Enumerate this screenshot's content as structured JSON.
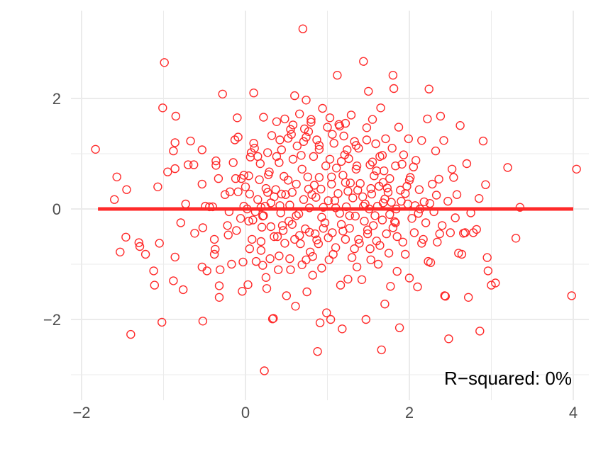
{
  "chart_data": {
    "type": "scatter",
    "title": "",
    "xlabel": "",
    "ylabel": "",
    "xlim": [
      -1.95,
      4.15
    ],
    "ylim": [
      -3.15,
      3.4
    ],
    "x_ticks": [
      -2,
      0,
      2,
      4
    ],
    "x_tick_labels": [
      "−2",
      "0",
      "2",
      "4"
    ],
    "y_ticks": [
      -2,
      0,
      2
    ],
    "y_tick_labels": [
      "−2",
      "0",
      "2"
    ],
    "grid": true,
    "legend": "none",
    "colors": {
      "points": "#ff2a2a",
      "fit_line": "#ff2a2a",
      "grid": "#ebebeb",
      "background": "#ffffff"
    },
    "fit_line": {
      "x": [
        -1.8,
        4.0
      ],
      "y": [
        0.0,
        0.0
      ]
    },
    "annotation": "R−squared: 0%",
    "points": [
      [
        -1.83,
        1.08
      ],
      [
        -1.57,
        0.58
      ],
      [
        -1.6,
        0.17
      ],
      [
        -1.45,
        0.35
      ],
      [
        -1.53,
        -0.78
      ],
      [
        -1.46,
        -0.51
      ],
      [
        -1.4,
        -2.27
      ],
      [
        -1.3,
        -0.61
      ],
      [
        -1.29,
        -0.68
      ],
      [
        -1.22,
        -0.82
      ],
      [
        -1.12,
        -1.12
      ],
      [
        -1.11,
        -1.38
      ],
      [
        -1.07,
        0.4
      ],
      [
        -1.05,
        -0.62
      ],
      [
        -1.02,
        -2.05
      ],
      [
        -0.99,
        2.65
      ],
      [
        -1.01,
        1.83
      ],
      [
        -0.95,
        0.67
      ],
      [
        -0.88,
        1.05
      ],
      [
        -0.86,
        1.2
      ],
      [
        -0.85,
        1.68
      ],
      [
        -0.86,
        0.73
      ],
      [
        -0.88,
        -1.3
      ],
      [
        -0.86,
        -0.87
      ],
      [
        -0.79,
        -0.25
      ],
      [
        -0.76,
        -1.46
      ],
      [
        -0.73,
        0.09
      ],
      [
        -0.7,
        0.8
      ],
      [
        -0.67,
        1.23
      ],
      [
        -0.63,
        0.8
      ],
      [
        -0.62,
        -0.44
      ],
      [
        -0.53,
        1.07
      ],
      [
        -0.53,
        0.45
      ],
      [
        -0.52,
        -0.34
      ],
      [
        -0.53,
        -1.05
      ],
      [
        -0.52,
        -2.03
      ],
      [
        -0.49,
        0.05
      ],
      [
        -0.47,
        -1.12
      ],
      [
        -0.44,
        0.04
      ],
      [
        -0.4,
        0.04
      ],
      [
        -0.38,
        -0.55
      ],
      [
        -0.37,
        -0.73
      ],
      [
        -0.38,
        -0.82
      ],
      [
        -0.36,
        0.79
      ],
      [
        -0.36,
        0.87
      ],
      [
        -0.33,
        0.55
      ],
      [
        -0.32,
        -1.39
      ],
      [
        -0.32,
        -1.6
      ],
      [
        -0.31,
        -1.1
      ],
      [
        -0.28,
        2.08
      ],
      [
        -0.25,
        0.26
      ],
      [
        -0.22,
        -0.3
      ],
      [
        -0.21,
        -0.47
      ],
      [
        -0.19,
        0.31
      ],
      [
        -0.17,
        -1.0
      ],
      [
        -0.15,
        0.84
      ],
      [
        -0.13,
        1.25
      ],
      [
        -0.1,
        1.65
      ],
      [
        -0.09,
        1.3
      ],
      [
        -0.11,
        -0.39
      ],
      [
        -0.09,
        0.31
      ],
      [
        -0.06,
        -0.17
      ],
      [
        -0.04,
        -1.49
      ],
      [
        -0.03,
        -0.96
      ],
      [
        -0.02,
        0.61
      ],
      [
        0.0,
        0.4
      ],
      [
        -0.02,
        0.05
      ],
      [
        0.02,
        0.0
      ],
      [
        0.03,
        -1.37
      ],
      [
        0.04,
        -0.22
      ],
      [
        0.04,
        0.6
      ],
      [
        0.05,
        -0.72
      ],
      [
        0.06,
        0.94
      ],
      [
        0.07,
        1.02
      ],
      [
        0.08,
        -0.55
      ],
      [
        0.1,
        2.1
      ],
      [
        0.1,
        1.19
      ],
      [
        0.11,
        1.1
      ],
      [
        0.13,
        -0.95
      ],
      [
        0.15,
        0.17
      ],
      [
        0.17,
        0.53
      ],
      [
        0.18,
        0.82
      ],
      [
        0.19,
        0.03
      ],
      [
        0.19,
        -0.59
      ],
      [
        0.2,
        -0.33
      ],
      [
        0.21,
        -0.13
      ],
      [
        0.21,
        -1.02
      ],
      [
        0.22,
        1.66
      ],
      [
        0.23,
        -2.93
      ],
      [
        0.24,
        0.05
      ],
      [
        0.25,
        -1.24
      ],
      [
        0.26,
        -1.44
      ],
      [
        0.27,
        0.3
      ],
      [
        0.29,
        0.67
      ],
      [
        0.3,
        -0.9
      ],
      [
        0.31,
        0.11
      ],
      [
        0.32,
        1.33
      ],
      [
        0.33,
        -1.99
      ],
      [
        0.34,
        -1.98
      ],
      [
        0.35,
        0.22
      ],
      [
        0.37,
        0.35
      ],
      [
        0.38,
        1.58
      ],
      [
        0.39,
        -0.5
      ],
      [
        0.4,
        -1.1
      ],
      [
        0.41,
        0.84
      ],
      [
        0.42,
        0.06
      ],
      [
        0.43,
        -0.07
      ],
      [
        0.44,
        1.07
      ],
      [
        0.46,
        -0.39
      ],
      [
        0.47,
        0.59
      ],
      [
        0.48,
        1.63
      ],
      [
        0.49,
        0.26
      ],
      [
        0.5,
        -1.57
      ],
      [
        0.52,
        0.52
      ],
      [
        0.53,
        -0.22
      ],
      [
        0.54,
        0.07
      ],
      [
        0.55,
        -1.1
      ],
      [
        0.56,
        1.35
      ],
      [
        0.57,
        -0.28
      ],
      [
        0.58,
        0.9
      ],
      [
        0.6,
        2.05
      ],
      [
        0.61,
        -1.76
      ],
      [
        0.62,
        0.45
      ],
      [
        0.63,
        1.14
      ],
      [
        0.65,
        -0.09
      ],
      [
        0.66,
        1.72
      ],
      [
        0.67,
        -0.63
      ],
      [
        0.68,
        0.97
      ],
      [
        0.69,
        -1.01
      ],
      [
        0.7,
        3.26
      ],
      [
        0.71,
        0.17
      ],
      [
        0.72,
        1.45
      ],
      [
        0.73,
        -0.36
      ],
      [
        0.74,
        1.97
      ],
      [
        0.75,
        -1.5
      ],
      [
        0.76,
        0.58
      ],
      [
        0.77,
        1.4
      ],
      [
        0.78,
        0.02
      ],
      [
        0.79,
        -0.78
      ],
      [
        0.8,
        1.57
      ],
      [
        0.81,
        0.26
      ],
      [
        0.82,
        -1.2
      ],
      [
        0.83,
        0.95
      ],
      [
        0.85,
        -0.45
      ],
      [
        0.86,
        0.21
      ],
      [
        0.87,
        1.25
      ],
      [
        0.88,
        -2.58
      ],
      [
        0.89,
        -0.63
      ],
      [
        0.9,
        1.08
      ],
      [
        0.91,
        -2.06
      ],
      [
        0.92,
        0.36
      ],
      [
        0.93,
        -1.07
      ],
      [
        0.94,
        1.82
      ],
      [
        0.95,
        0.03
      ],
      [
        0.97,
        -0.25
      ],
      [
        0.98,
        0.78
      ],
      [
        0.99,
        -1.88
      ],
      [
        1.0,
        1.48
      ],
      [
        1.01,
        0.15
      ],
      [
        1.02,
        -0.92
      ],
      [
        1.03,
        1.65
      ],
      [
        1.04,
        -2.0
      ],
      [
        1.05,
        0.45
      ],
      [
        1.06,
        -0.43
      ],
      [
        1.08,
        1.19
      ],
      [
        1.09,
        0.15
      ],
      [
        1.1,
        -0.7
      ],
      [
        1.12,
        2.42
      ],
      [
        1.13,
        0.28
      ],
      [
        1.14,
        1.53
      ],
      [
        1.15,
        -0.08
      ],
      [
        1.16,
        -1.38
      ],
      [
        1.17,
        0.86
      ],
      [
        1.18,
        -2.17
      ],
      [
        1.19,
        0.61
      ],
      [
        1.2,
        1.32
      ],
      [
        1.22,
        -0.55
      ],
      [
        1.23,
        0.04
      ],
      [
        1.24,
        1.07
      ],
      [
        1.25,
        -1.27
      ],
      [
        1.26,
        0.91
      ],
      [
        1.27,
        -0.35
      ],
      [
        1.28,
        0.47
      ],
      [
        1.29,
        1.7
      ],
      [
        1.3,
        -0.88
      ],
      [
        1.31,
        0.2
      ],
      [
        1.33,
        1.22
      ],
      [
        1.34,
        -0.13
      ],
      [
        1.35,
        0.72
      ],
      [
        1.36,
        -1.05
      ],
      [
        1.37,
        0.34
      ],
      [
        1.38,
        1.1
      ],
      [
        1.39,
        -0.62
      ],
      [
        1.4,
        0.46
      ],
      [
        1.42,
        -1.28
      ],
      [
        1.44,
        2.67
      ],
      [
        1.45,
        -0.22
      ],
      [
        1.46,
        0.09
      ],
      [
        1.47,
        -2.0
      ],
      [
        1.48,
        1.47
      ],
      [
        1.49,
        -0.45
      ],
      [
        1.5,
        2.13
      ],
      [
        1.51,
        0.0
      ],
      [
        1.52,
        0.8
      ],
      [
        1.53,
        -0.92
      ],
      [
        1.54,
        0.27
      ],
      [
        1.55,
        1.62
      ],
      [
        1.56,
        -0.3
      ],
      [
        1.57,
        0.6
      ],
      [
        1.59,
        1.18
      ],
      [
        1.6,
        -0.58
      ],
      [
        1.61,
        0.05
      ],
      [
        1.62,
        -1.0
      ],
      [
        1.63,
        0.41
      ],
      [
        1.64,
        0.95
      ],
      [
        1.65,
        1.83
      ],
      [
        1.66,
        -2.55
      ],
      [
        1.67,
        -0.2
      ],
      [
        1.68,
        0.11
      ],
      [
        1.69,
        0.69
      ],
      [
        1.7,
        -1.72
      ],
      [
        1.71,
        1.27
      ],
      [
        1.72,
        -0.45
      ],
      [
        1.74,
        0.3
      ],
      [
        1.75,
        -0.8
      ],
      [
        1.76,
        0.55
      ],
      [
        1.77,
        -1.4
      ],
      [
        1.78,
        0.12
      ],
      [
        1.79,
        1.1
      ],
      [
        1.8,
        2.42
      ],
      [
        1.81,
        2.18
      ],
      [
        1.82,
        -0.23
      ],
      [
        1.83,
        0.78
      ],
      [
        1.84,
        0.0
      ],
      [
        1.85,
        -1.13
      ],
      [
        1.87,
        1.48
      ],
      [
        1.88,
        -2.15
      ],
      [
        1.89,
        0.34
      ],
      [
        1.9,
        0.14
      ],
      [
        1.92,
        -0.6
      ],
      [
        1.93,
        0.98
      ],
      [
        1.95,
        -0.82
      ],
      [
        1.97,
        0.41
      ],
      [
        1.98,
        0.09
      ],
      [
        2.0,
        -1.25
      ],
      [
        2.01,
        0.57
      ],
      [
        2.03,
        -0.17
      ],
      [
        2.05,
        0.76
      ],
      [
        2.06,
        -0.43
      ],
      [
        2.08,
        0.88
      ],
      [
        2.1,
        -1.41
      ],
      [
        2.12,
        0.35
      ],
      [
        2.13,
        0.0
      ],
      [
        2.15,
        1.24
      ],
      [
        2.17,
        -0.55
      ],
      [
        2.18,
        0.13
      ],
      [
        2.2,
        -0.25
      ],
      [
        2.22,
        1.63
      ],
      [
        2.24,
        2.17
      ],
      [
        2.26,
        -0.97
      ],
      [
        2.28,
        0.45
      ],
      [
        2.3,
        -0.05
      ],
      [
        2.32,
        1.05
      ],
      [
        2.34,
        -0.6
      ],
      [
        2.36,
        0.54
      ],
      [
        2.38,
        1.68
      ],
      [
        2.4,
        -0.3
      ],
      [
        2.42,
        1.24
      ],
      [
        2.43,
        -1.57
      ],
      [
        2.44,
        -1.58
      ],
      [
        2.47,
        0.14
      ],
      [
        2.48,
        -2.35
      ],
      [
        2.5,
        -0.43
      ],
      [
        2.52,
        0.72
      ],
      [
        2.54,
        0.57
      ],
      [
        2.56,
        -0.16
      ],
      [
        2.58,
        0.26
      ],
      [
        2.6,
        -0.8
      ],
      [
        2.62,
        1.51
      ],
      [
        2.64,
        -0.82
      ],
      [
        2.66,
        -0.44
      ],
      [
        2.68,
        -0.43
      ],
      [
        2.7,
        0.82
      ],
      [
        2.72,
        -1.6
      ],
      [
        2.75,
        -0.07
      ],
      [
        2.78,
        -0.43
      ],
      [
        2.82,
        -0.37
      ],
      [
        2.85,
        0.19
      ],
      [
        2.86,
        -2.21
      ],
      [
        2.9,
        1.23
      ],
      [
        2.93,
        0.44
      ],
      [
        2.95,
        -0.88
      ],
      [
        2.96,
        -1.12
      ],
      [
        3.0,
        -1.38
      ],
      [
        3.05,
        -1.34
      ],
      [
        3.2,
        0.75
      ],
      [
        3.3,
        -0.53
      ],
      [
        3.35,
        0.03
      ],
      [
        3.98,
        -1.57
      ],
      [
        4.04,
        0.72
      ],
      [
        0.35,
        -0.5
      ],
      [
        0.45,
        -0.3
      ],
      [
        0.62,
        -0.12
      ],
      [
        0.78,
        -0.42
      ],
      [
        0.95,
        -0.35
      ],
      [
        1.1,
        0.02
      ],
      [
        1.25,
        0.32
      ],
      [
        1.43,
        0.22
      ],
      [
        1.58,
        -0.12
      ],
      [
        1.73,
        0.38
      ],
      [
        0.15,
        0.95
      ],
      [
        0.27,
        1.02
      ],
      [
        0.52,
        1.28
      ],
      [
        0.69,
        0.72
      ],
      [
        0.84,
        0.43
      ],
      [
        1.05,
        0.58
      ],
      [
        1.21,
        0.98
      ],
      [
        1.36,
        0.78
      ],
      [
        1.53,
        0.37
      ],
      [
        1.68,
        0.48
      ],
      [
        0.19,
        -0.75
      ],
      [
        0.31,
        -0.32
      ],
      [
        0.48,
        -0.62
      ],
      [
        0.66,
        -0.48
      ],
      [
        0.82,
        -0.86
      ],
      [
        1.01,
        -0.52
      ],
      [
        1.17,
        -0.28
      ],
      [
        1.33,
        -0.72
      ],
      [
        1.49,
        -0.38
      ],
      [
        1.64,
        -0.66
      ],
      [
        1.8,
        -0.34
      ],
      [
        1.95,
        0.28
      ],
      [
        2.11,
        -0.08
      ],
      [
        2.25,
        0.1
      ],
      [
        2.37,
        -0.45
      ],
      [
        0.09,
        -0.2
      ],
      [
        0.25,
        0.37
      ],
      [
        0.41,
        -0.85
      ],
      [
        0.57,
        0.3
      ],
      [
        0.74,
        -0.92
      ],
      [
        0.9,
        0.57
      ],
      [
        1.07,
        -0.82
      ],
      [
        1.22,
        0.48
      ],
      [
        1.38,
        -0.55
      ],
      [
        1.55,
        0.85
      ],
      [
        1.7,
        0.18
      ],
      [
        1.85,
        -0.5
      ],
      [
        2.0,
        0.52
      ],
      [
        2.15,
        -0.62
      ],
      [
        2.33,
        0.25
      ],
      [
        -0.05,
        0.55
      ],
      [
        0.12,
        -0.05
      ],
      [
        0.28,
        0.62
      ],
      [
        0.44,
        0.27
      ],
      [
        0.6,
        -0.55
      ],
      [
        0.77,
        0.36
      ],
      [
        0.93,
        -0.15
      ],
      [
        1.11,
        0.74
      ],
      [
        1.27,
        -0.12
      ],
      [
        1.44,
        0.05
      ],
      [
        1.6,
        0.69
      ],
      [
        1.76,
        -0.1
      ],
      [
        1.91,
        0.81
      ],
      [
        2.07,
        0.06
      ],
      [
        2.23,
        -0.95
      ],
      [
        -0.2,
        -0.05
      ],
      [
        -0.12,
        0.55
      ],
      [
        0.05,
        0.27
      ],
      [
        0.22,
        -0.12
      ],
      [
        0.38,
        0.95
      ],
      [
        0.54,
        -0.9
      ],
      [
        0.71,
        1.22
      ],
      [
        0.87,
        -0.56
      ],
      [
        1.03,
        0.9
      ],
      [
        1.19,
        -0.4
      ],
      [
        1.35,
        1.15
      ],
      [
        1.52,
        -0.72
      ],
      [
        1.67,
        0.97
      ],
      [
        1.83,
        -0.25
      ],
      [
        1.99,
        1.27
      ],
      [
        0.58,
        1.52
      ],
      [
        0.74,
        1.3
      ],
      [
        0.9,
        1.15
      ],
      [
        1.06,
        1.35
      ],
      [
        1.22,
        1.55
      ],
      [
        0.42,
        1.25
      ],
      [
        0.55,
        1.44
      ],
      [
        0.8,
        1.62
      ],
      [
        1.15,
        1.5
      ],
      [
        1.48,
        1.25
      ]
    ]
  }
}
